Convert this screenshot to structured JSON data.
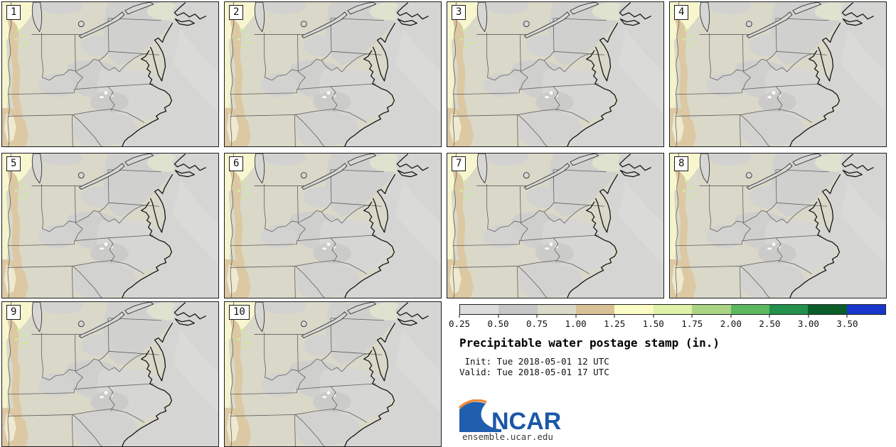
{
  "figure": {
    "title": "Precipitable water postage stamp (in.)",
    "init_line": " Init: Tue 2018-05-01 12 UTC",
    "valid_line": "Valid: Tue 2018-05-01 17 UTC"
  },
  "panels": [
    {
      "label": "1"
    },
    {
      "label": "2"
    },
    {
      "label": "3"
    },
    {
      "label": "4"
    },
    {
      "label": "5"
    },
    {
      "label": "6"
    },
    {
      "label": "7"
    },
    {
      "label": "8"
    },
    {
      "label": "9"
    },
    {
      "label": "10"
    }
  ],
  "colorbar": {
    "tick_labels": [
      "0.25",
      "0.50",
      "0.75",
      "1.00",
      "1.25",
      "1.50",
      "1.75",
      "2.00",
      "2.50",
      "3.00",
      "3.50"
    ],
    "segment_colors": [
      "#dddddd",
      "#c6c6c6",
      "#dadac8",
      "#d8c195",
      "#fbfbc5",
      "#e0f1a9",
      "#a9d585",
      "#5cb75f",
      "#23914b",
      "#0b5e2a",
      "#1836cc"
    ]
  },
  "branding": {
    "logo_text": "NCAR",
    "site_text": "ensemble.ucar.edu",
    "logo_blue": "#1f5fae",
    "logo_orange": "#ef8b3d"
  },
  "chart_data": {
    "type": "heatmap",
    "variant": "ensemble postage-stamp filled-contour maps, 10 members in a 4-column grid",
    "title": "Precipitable water postage stamp (in.)",
    "units": "in.",
    "init_time": "Tue 2018-05-01 12 UTC",
    "valid_time": "Tue 2018-05-01 17 UTC",
    "members": [
      "1",
      "2",
      "3",
      "4",
      "5",
      "6",
      "7",
      "8",
      "9",
      "10"
    ],
    "region_shown": "Eastern United States: Great Lakes to Georgia with Atlantic coastline",
    "colorbar": {
      "orientation": "horizontal",
      "tick_values": [
        0.25,
        0.5,
        0.75,
        1.0,
        1.25,
        1.5,
        1.75,
        2.0,
        2.5,
        3.0,
        3.5
      ],
      "segment_colors": [
        "#dddddd",
        "#c6c6c6",
        "#dadac8",
        "#d8c195",
        "#fbfbc5",
        "#e0f1a9",
        "#a9d585",
        "#5cb75f",
        "#23914b",
        "#0b5e2a",
        "#1836cc"
      ],
      "open_ended_above": 3.5
    },
    "value_note": "Shading in all members spans roughly the 0.25-1.50 in. bins: grays over the interior/ocean, tan and pale-yellow bands along the western (Mississippi Valley) edge, small white (<0.25 in.) patches over central North Carolina"
  }
}
